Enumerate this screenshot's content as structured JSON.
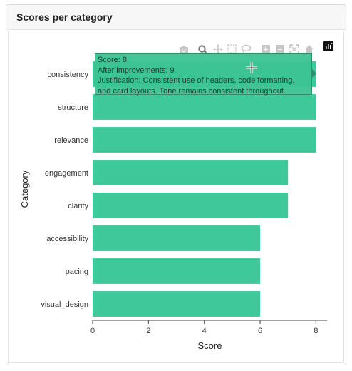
{
  "panel": {
    "title": "Scores per category"
  },
  "chart_data": {
    "type": "bar",
    "orientation": "horizontal",
    "categories": [
      "consistency",
      "structure",
      "relevance",
      "engagement",
      "clarity",
      "accessibility",
      "pacing",
      "visual_design"
    ],
    "values": [
      8,
      8,
      8,
      7,
      7,
      6,
      6,
      6
    ],
    "xlabel": "Score",
    "ylabel": "Category",
    "xlim": [
      0,
      8.4
    ],
    "xticks": [
      0,
      2,
      4,
      6,
      8
    ],
    "bar_color": "#3fc99a",
    "grid": false,
    "legend": "none"
  },
  "tooltip": {
    "line1": "Score: 8",
    "line2": "After improvements: 9",
    "line3": "Justification: Consistent use of headers, code formatting, and card layouts. Tone remains consistent throughout."
  },
  "modebar": {
    "icons": [
      "camera-icon",
      "zoom-icon",
      "pan-icon",
      "box-select-icon",
      "lasso-icon",
      "zoom-in-icon",
      "zoom-out-icon",
      "autoscale-icon",
      "home-icon",
      "plotly-logo-icon"
    ]
  }
}
